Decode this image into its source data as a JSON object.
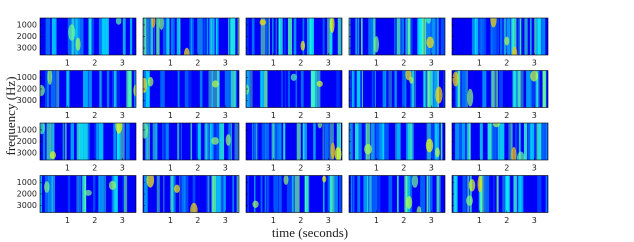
{
  "chart_data": {
    "type": "spectrogram-grid",
    "xlabel": "time (seconds)",
    "ylabel": "frequency (Hz)",
    "xlim": [
      0,
      3.5
    ],
    "xticks": [
      1,
      2,
      3
    ],
    "ylim": [
      400,
      3600
    ],
    "yticks": [
      1000,
      2000,
      3000
    ],
    "y_inverted": true,
    "colormap": "jet"
  }
}
